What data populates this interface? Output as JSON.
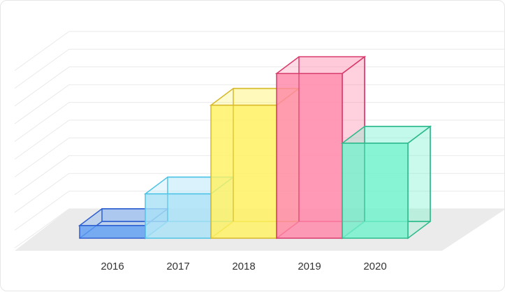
{
  "chart_data": {
    "type": "bar",
    "title": "",
    "xlabel": "",
    "ylabel": "",
    "categories": [
      "2016",
      "2017",
      "2018",
      "2019",
      "2020"
    ],
    "values": [
      1,
      3.5,
      10.5,
      13,
      7.5
    ],
    "ylim": [
      0,
      15
    ],
    "grid": true,
    "colors": {
      "fills": [
        "#5b9cf2",
        "#a9e2f7",
        "#fff262",
        "#ff87a8",
        "#72f2cc"
      ],
      "strokes": [
        "#2e5fd0",
        "#4fc3e6",
        "#d6b82b",
        "#d83a6c",
        "#2eb98b"
      ],
      "grid": "#e9e9e9",
      "floor": "#ebebeb"
    }
  }
}
